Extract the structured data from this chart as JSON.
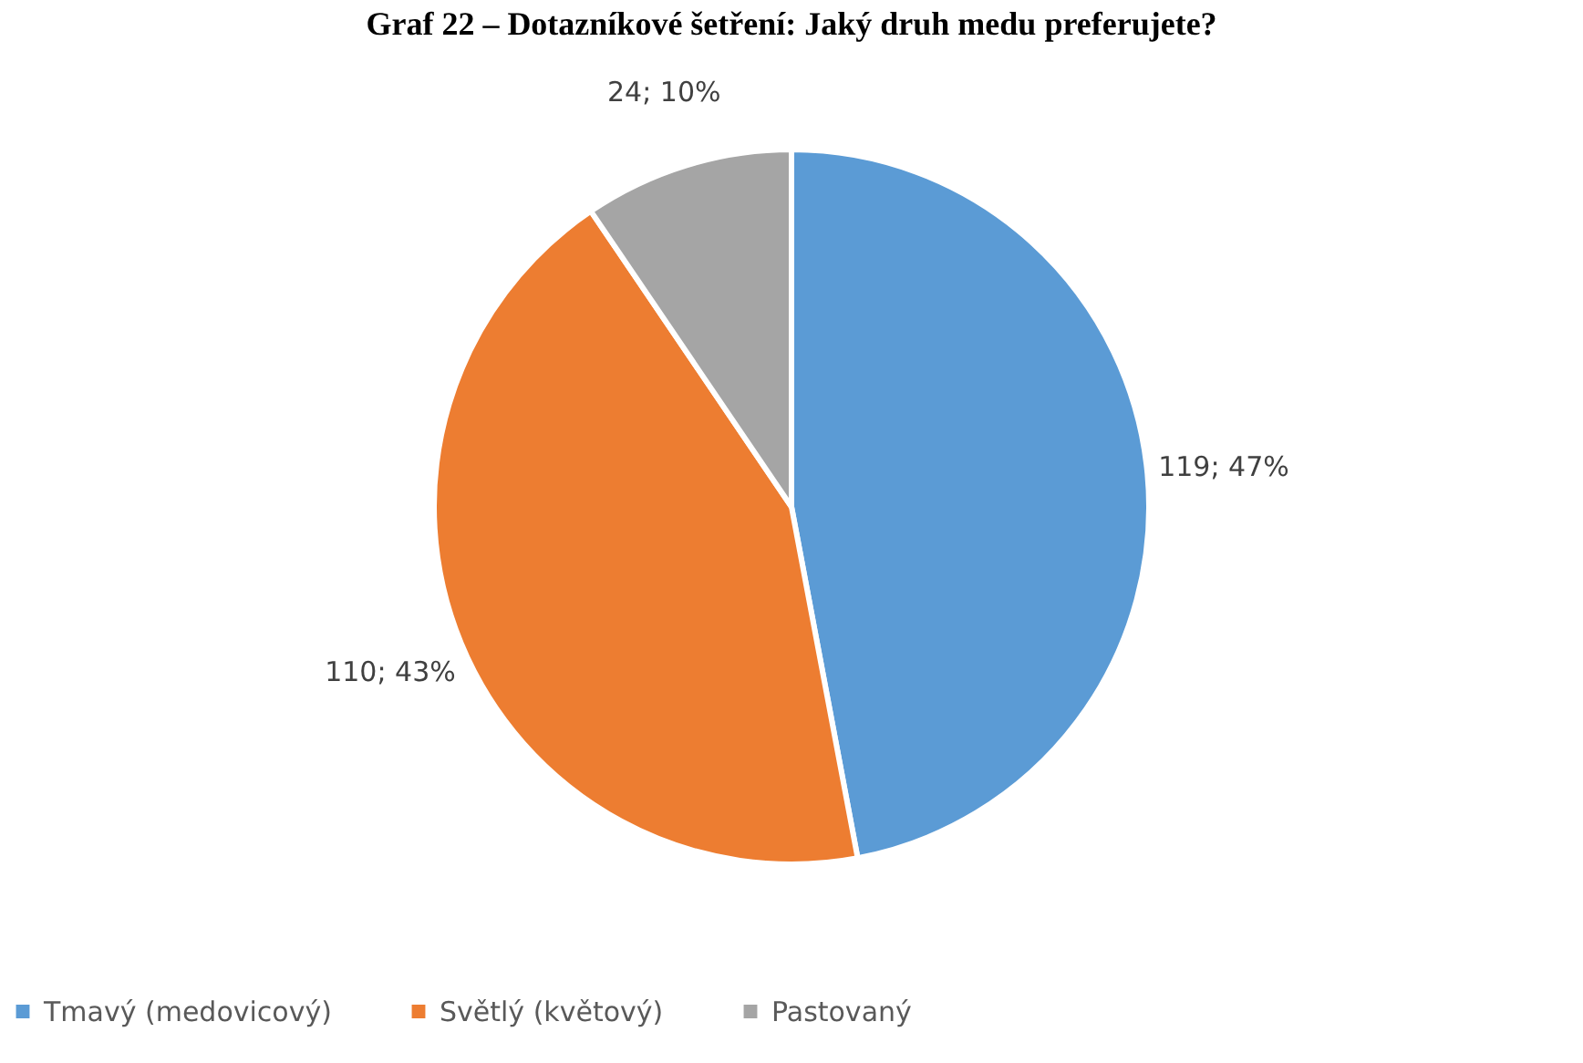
{
  "chart_data": {
    "type": "pie",
    "title": "Graf 22 – Dotazníkové šetření: Jaký druh medu preferujete?",
    "categories": [
      "Tmavý (medovicový)",
      "Světlý (květový)",
      "Pastovaný"
    ],
    "values": [
      119,
      110,
      24
    ],
    "colors": [
      "#5b9bd5",
      "#ed7d31",
      "#a5a5a5"
    ],
    "value_labels": [
      "119; 47%",
      "110; 43%",
      "24; 10%"
    ],
    "legend": "bottom"
  }
}
